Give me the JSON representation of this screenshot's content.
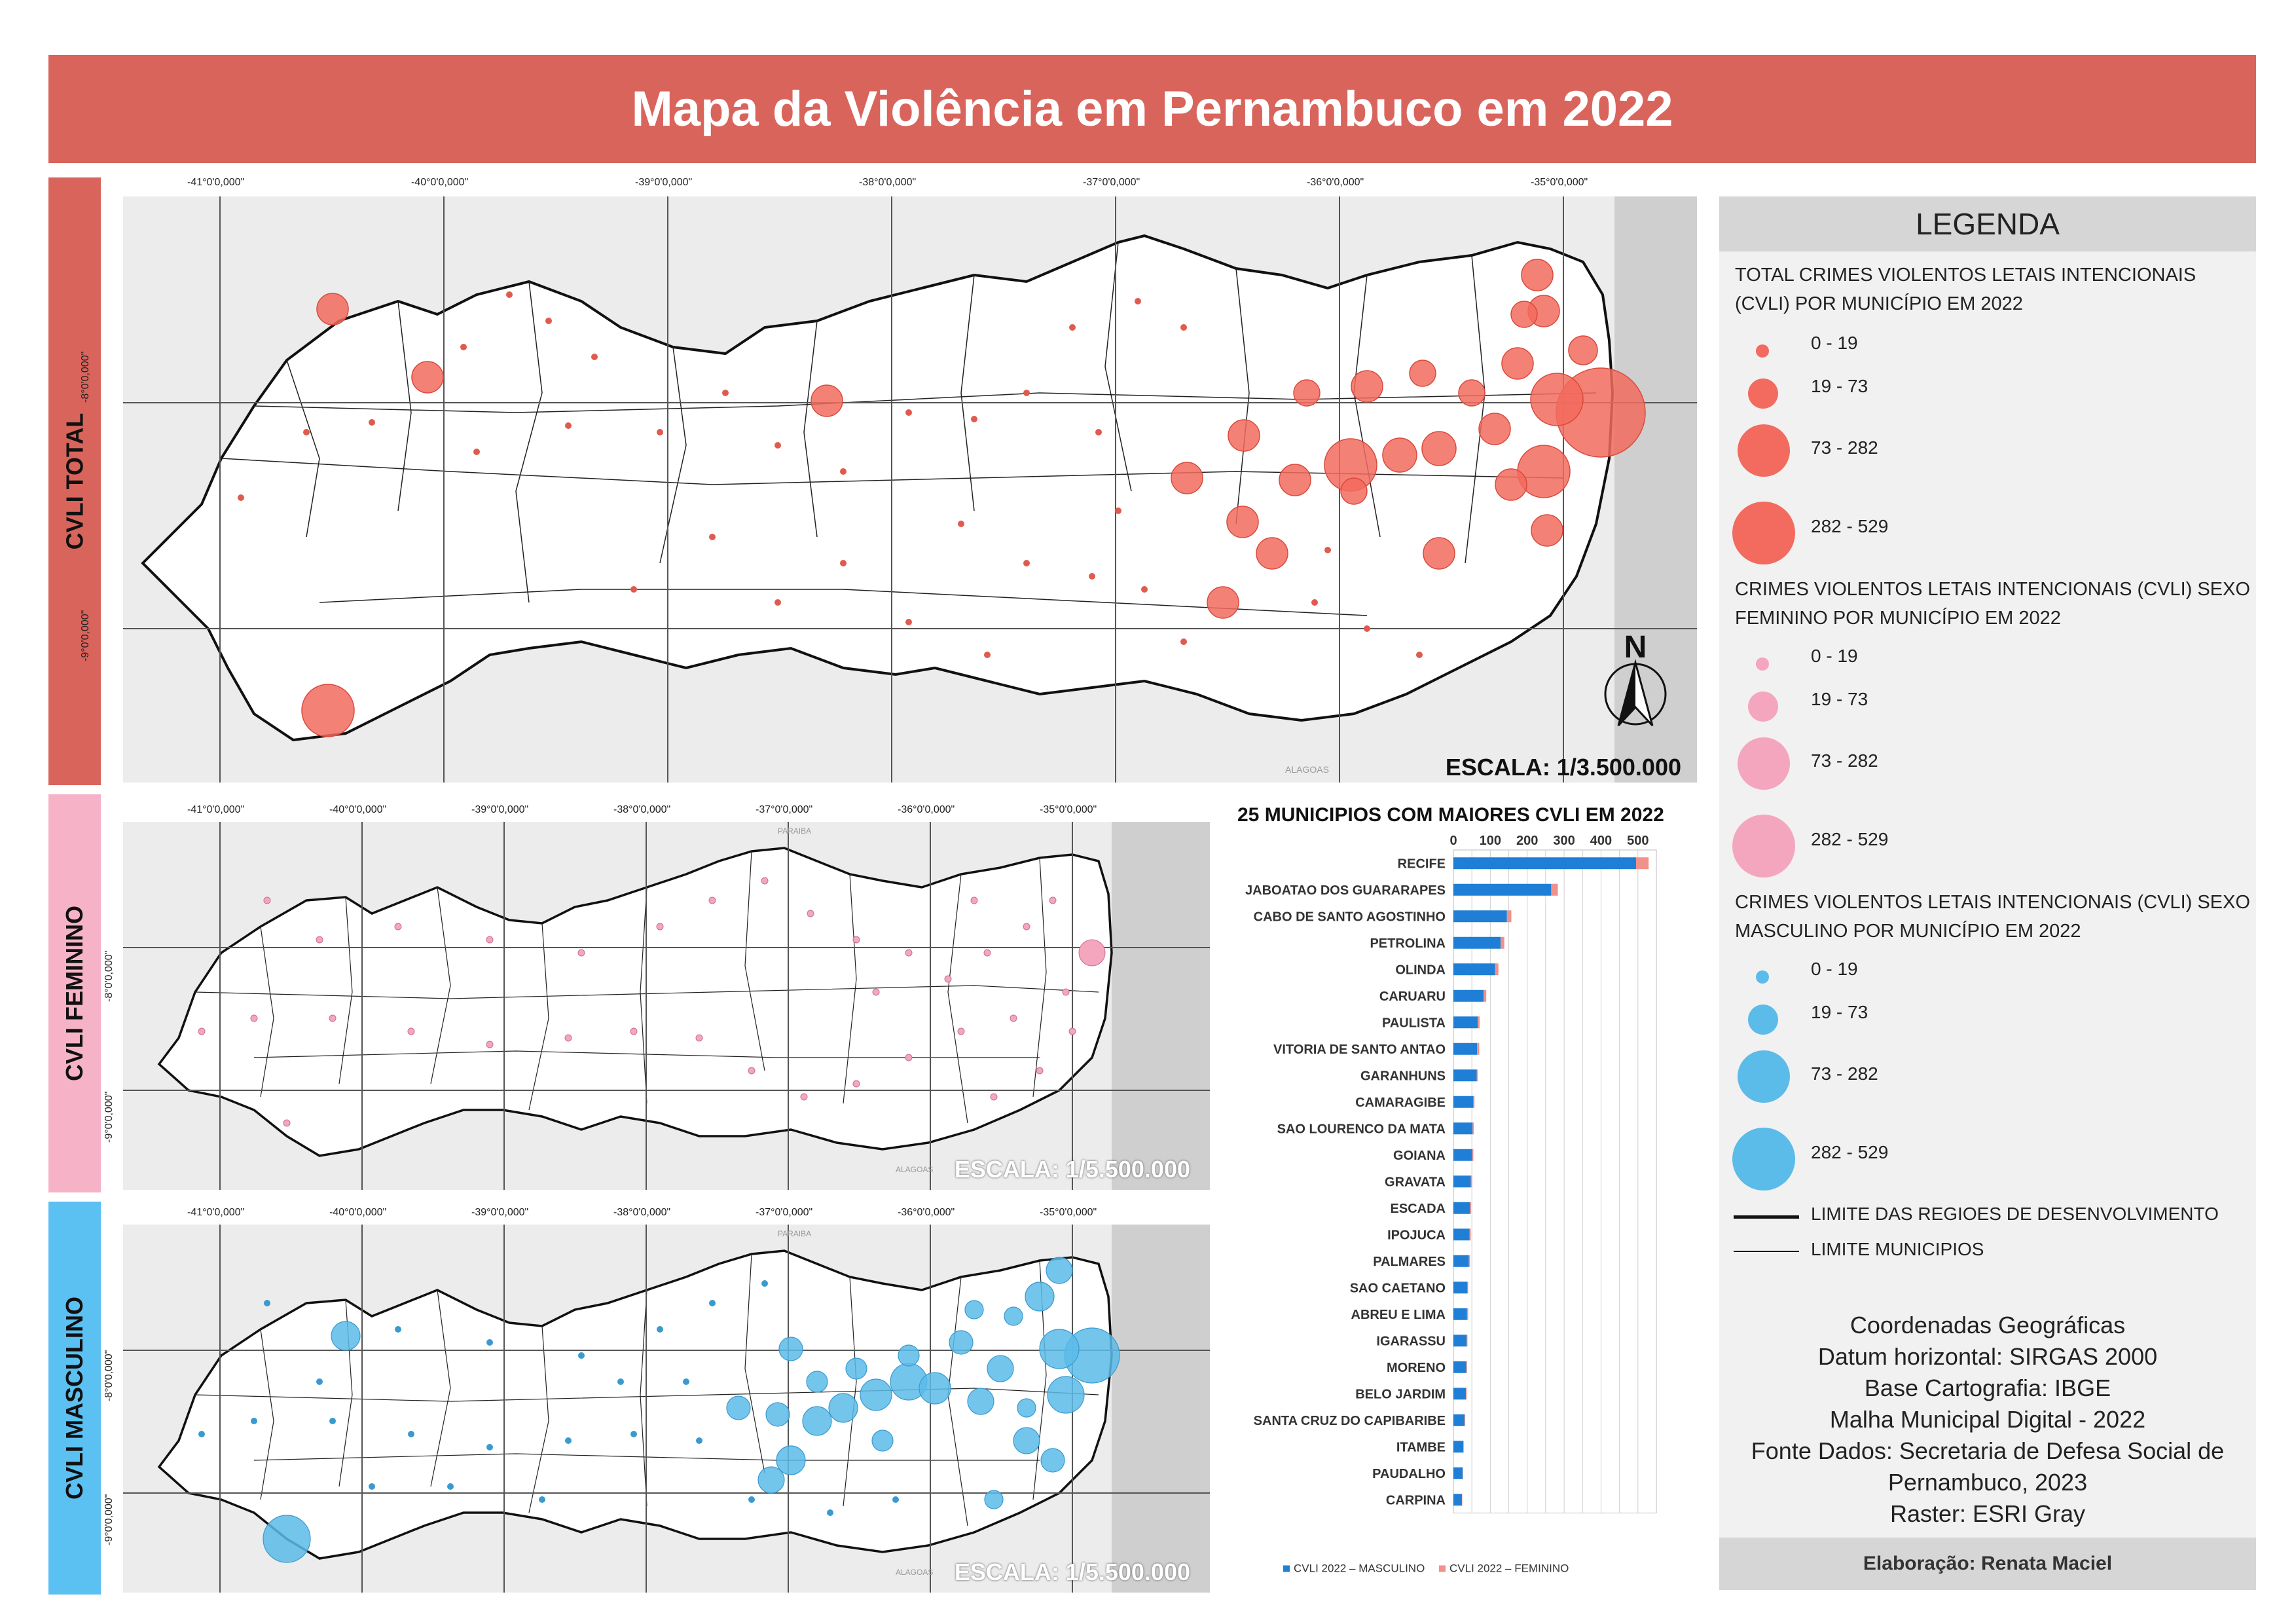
{
  "title": "Mapa da Violência em Pernambuco em 2022",
  "side_tabs": {
    "total": "CVLI TOTAL",
    "feminino": "CVLI FEMININO",
    "masculino": "CVLI MASCULINO"
  },
  "colors": {
    "title_bg": "#d9645c",
    "total_tab": "#d9645c",
    "feminino_tab": "#f6b3c8",
    "masculino_tab": "#5bc0f2",
    "total_circle": "#f26b5e",
    "feminino_circle": "#f4a6be",
    "masculino_circle": "#5bbbe9",
    "bar_masculino": "#1f7fd6",
    "bar_feminino": "#f0928a"
  },
  "graticule": {
    "longitudes": [
      "-41°0'0,000\"",
      "-40°0'0,000\"",
      "-39°0'0,000\"",
      "-38°0'0,000\"",
      "-37°0'0,000\"",
      "-36°0'0,000\"",
      "-35°0'0,000\""
    ],
    "latitudes": [
      "-8°0'0,000\"",
      "-9°0'0,000\""
    ]
  },
  "map_labels": {
    "alagoas": "ALAGOAS",
    "paraiba": "PARAIBA",
    "north": "N"
  },
  "scales": {
    "total": "ESCALA: 1/3.500.000",
    "feminino": "ESCALA: 1/5.500.000",
    "masculino": "ESCALA: 1/5.500.000"
  },
  "legend": {
    "heading": "LEGENDA",
    "total_title": "TOTAL CRIMES VIOLENTOS LETAIS INTENCIONAIS (CVLI) POR MUNICÍPIO EM 2022",
    "feminino_title": "CRIMES VIOLENTOS LETAIS INTENCIONAIS (CVLI) SEXO FEMININO POR MUNICÍPIO EM 2022",
    "masculino_title": "CRIMES VIOLENTOS LETAIS INTENCIONAIS (CVLI) SEXO MASCULINO POR MUNICÍPIO EM 2022",
    "classes": [
      "0 - 19",
      "19 - 73",
      "73 - 282",
      "282 - 529"
    ],
    "limite_regioes": "LIMITE DAS REGIOES DE DESENVOLVIMENTO",
    "limite_municipios": "LIMITE MUNICIPIOS",
    "info": [
      "Coordenadas Geográficas",
      "Datum horizontal: SIRGAS 2000",
      "Base Cartografia: IBGE",
      "Malha Municipal Digital - 2022",
      "Fonte Dados: Secretaria de Defesa Social de",
      "Pernambuco, 2023",
      "Raster: ESRI Gray"
    ],
    "credit": "Elaboração: Renata Maciel"
  },
  "chart_data": {
    "type": "bar",
    "orientation": "horizontal",
    "stacked": true,
    "title": "25 MUNICIPIOS COM MAIORES CVLI EM 2022",
    "xlim": [
      0,
      550
    ],
    "ticks": [
      0,
      100,
      200,
      300,
      400,
      500
    ],
    "categories": [
      "RECIFE",
      "JABOATAO DOS GUARARAPES",
      "CABO DE SANTO AGOSTINHO",
      "PETROLINA",
      "OLINDA",
      "CARUARU",
      "PAULISTA",
      "VITORIA DE SANTO ANTAO",
      "GARANHUNS",
      "CAMARAGIBE",
      "SAO LOURENCO DA MATA",
      "GOIANA",
      "GRAVATA",
      "ESCADA",
      "IPOJUCA",
      "PALMARES",
      "SAO CAETANO",
      "ABREU E LIMA",
      "IGARASSU",
      "MORENO",
      "BELO JARDIM",
      "SANTA CRUZ DO CAPIBARIBE",
      "ITAMBE",
      "PAUDALHO",
      "CARPINA"
    ],
    "series": [
      {
        "name": "CVLI 2022 – MASCULINO",
        "values": [
          495,
          265,
          145,
          128,
          113,
          82,
          66,
          64,
          63,
          54,
          52,
          51,
          47,
          45,
          44,
          42,
          38,
          37,
          36,
          35,
          34,
          30,
          27,
          25,
          23
        ]
      },
      {
        "name": "CVLI 2022 – FEMININO",
        "values": [
          34,
          18,
          12,
          10,
          9,
          7,
          5,
          6,
          3,
          3,
          3,
          3,
          4,
          3,
          3,
          3,
          2,
          3,
          2,
          2,
          2,
          2,
          1,
          1,
          1
        ]
      }
    ]
  }
}
